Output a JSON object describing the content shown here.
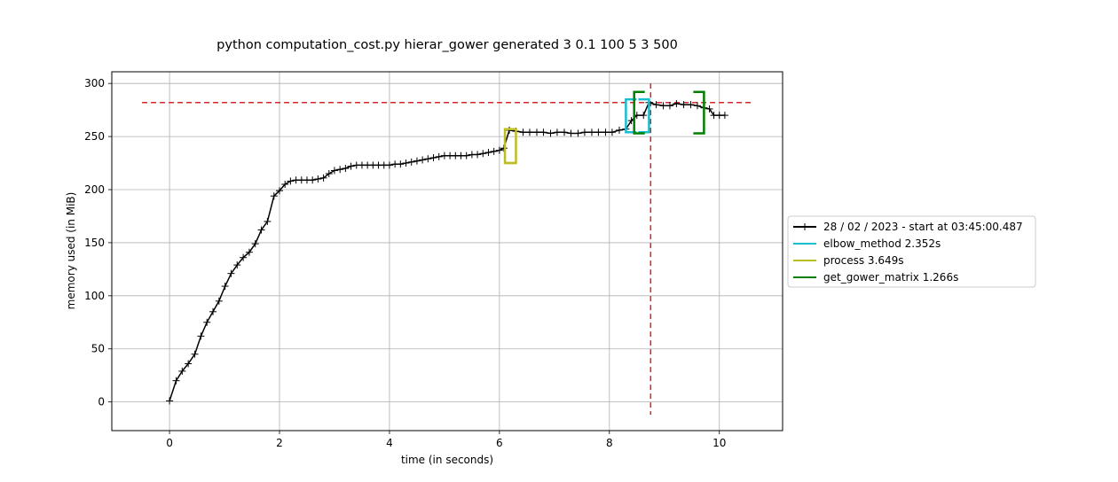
{
  "chart_data": {
    "type": "line",
    "title": "python computation_cost.py hierar_gower generated 3 0.1 100 5 3 500",
    "xlabel": "time (in seconds)",
    "ylabel": "memory used (in MiB)",
    "xlim": [
      -1.05,
      11.15
    ],
    "ylim": [
      -27,
      311
    ],
    "xticks": [
      0,
      2,
      4,
      6,
      8,
      10
    ],
    "yticks": [
      0,
      50,
      100,
      150,
      200,
      250,
      300
    ],
    "grid": true,
    "legend_position": "outside-right",
    "series": [
      {
        "name": "28 / 02 / 2023 - start at 03:45:00.487",
        "color": "#000000",
        "marker": "plus",
        "x": [
          0.0,
          0.12,
          0.23,
          0.34,
          0.46,
          0.57,
          0.68,
          0.79,
          0.9,
          1.01,
          1.12,
          1.23,
          1.34,
          1.45,
          1.56,
          1.67,
          1.78,
          1.9,
          2.0,
          2.1,
          2.2,
          2.3,
          2.4,
          2.5,
          2.6,
          2.7,
          2.8,
          2.9,
          3.0,
          3.1,
          3.2,
          3.3,
          3.4,
          3.5,
          3.6,
          3.7,
          3.8,
          3.9,
          4.0,
          4.1,
          4.2,
          4.3,
          4.4,
          4.5,
          4.6,
          4.7,
          4.8,
          4.9,
          5.0,
          5.1,
          5.2,
          5.3,
          5.4,
          5.5,
          5.6,
          5.7,
          5.8,
          5.9,
          6.0,
          6.08,
          6.18,
          6.3,
          6.43,
          6.55,
          6.68,
          6.8,
          6.93,
          7.05,
          7.18,
          7.3,
          7.43,
          7.55,
          7.68,
          7.8,
          7.93,
          8.05,
          8.18,
          8.3,
          8.4,
          8.5,
          8.62,
          8.72,
          8.85,
          8.98,
          9.1,
          9.22,
          9.35,
          9.48,
          9.6,
          9.72,
          9.82,
          9.9,
          10.0,
          10.1
        ],
        "y": [
          1,
          20,
          29,
          36,
          45,
          62,
          75,
          85,
          95,
          109,
          121,
          129,
          136,
          141,
          149,
          162,
          170,
          194,
          199,
          205,
          208,
          209,
          209,
          209,
          209,
          210,
          211,
          215,
          218,
          219,
          220,
          222,
          223,
          223,
          223,
          223,
          223,
          223,
          223,
          224,
          224,
          225,
          226,
          227,
          228,
          229,
          230,
          231,
          232,
          232,
          232,
          232,
          232,
          233,
          233,
          234,
          235,
          236,
          237,
          239,
          256,
          255,
          254,
          254,
          254,
          254,
          253,
          254,
          254,
          253,
          253,
          254,
          254,
          254,
          254,
          254,
          256,
          257,
          265,
          270,
          270,
          282,
          280,
          279,
          279,
          281,
          280,
          280,
          279,
          277,
          276,
          270,
          270,
          270
        ]
      }
    ],
    "function_brackets": [
      {
        "name": "elbow_method 2.352s",
        "color": "#17becf",
        "start_x": 8.3,
        "end_x": 8.72,
        "low_y": 254,
        "high_y": 285
      },
      {
        "name": "process 3.649s",
        "color": "#bcbd22",
        "start_x": 6.1,
        "end_x": 6.3,
        "low_y": 225,
        "high_y": 257
      },
      {
        "name": "get_gower_matrix 1.266s",
        "color": "#008000",
        "start_x": 8.45,
        "end_x": 9.72,
        "low_y": 253,
        "high_y": 292
      }
    ],
    "peak_markers": {
      "color": "#d62728",
      "max_memory_y": 282,
      "max_memory_x": 8.75
    }
  }
}
